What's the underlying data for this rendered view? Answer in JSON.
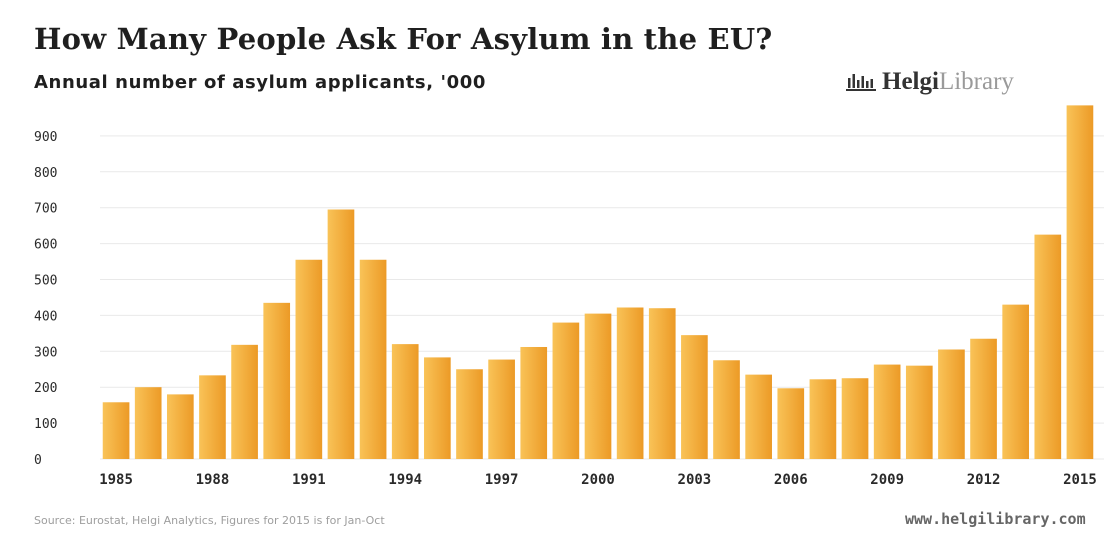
{
  "header": {
    "title": "How Many People Ask For Asylum in the EU?",
    "subtitle": "Annual number of asylum applicants, '000",
    "brand_primary": "Helgi",
    "brand_secondary": "Library",
    "brand_icon": "library-logo-icon"
  },
  "footer": {
    "source": "Source: Eurostat, Helgi Analytics, Figures for 2015 is for Jan-Oct",
    "url": "www.helgilibrary.com"
  },
  "colors": {
    "bar_light": "#f9c358",
    "bar_dark": "#ec9a26",
    "grid": "#e9e9e9",
    "text": "#222222"
  },
  "chart_data": {
    "type": "bar",
    "title": "How Many People Ask For Asylum in the EU?",
    "subtitle": "Annual number of asylum applicants, '000",
    "xlabel": "",
    "ylabel": "",
    "categories": [
      "1985",
      "1986",
      "1987",
      "1988",
      "1989",
      "1990",
      "1991",
      "1992",
      "1993",
      "1994",
      "1995",
      "1996",
      "1997",
      "1998",
      "1999",
      "2000",
      "2001",
      "2002",
      "2003",
      "2004",
      "2005",
      "2006",
      "2007",
      "2008",
      "2009",
      "2010",
      "2011",
      "2012",
      "2013",
      "2014",
      "2015"
    ],
    "values": [
      158,
      200,
      180,
      233,
      318,
      435,
      555,
      695,
      555,
      320,
      283,
      250,
      277,
      312,
      380,
      405,
      422,
      420,
      345,
      275,
      235,
      197,
      222,
      225,
      263,
      260,
      305,
      335,
      430,
      625,
      985
    ],
    "ylim": [
      0,
      1000
    ],
    "yticks": [
      0,
      100,
      200,
      300,
      400,
      500,
      600,
      700,
      800,
      900
    ],
    "xtick_labels": [
      "1985",
      "1988",
      "1991",
      "1994",
      "1997",
      "2000",
      "2003",
      "2006",
      "2009",
      "2012",
      "2015"
    ],
    "grid": true
  }
}
